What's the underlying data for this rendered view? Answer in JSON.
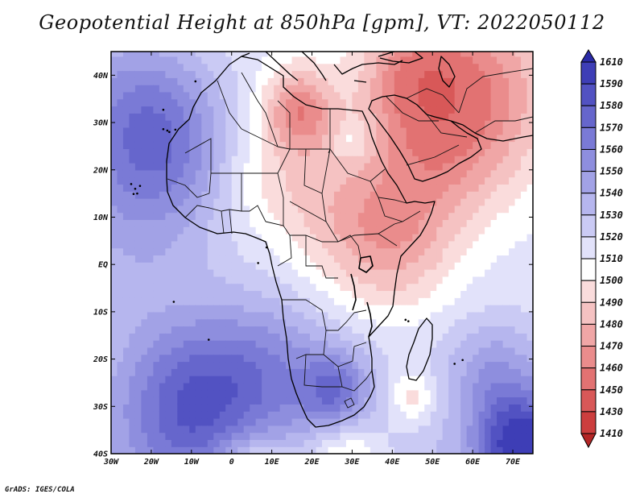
{
  "title": "Geopotential Height at 850hPa [gpm], VT: 2022050112",
  "credit": "GrADS: IGES/COLA",
  "map": {
    "projection": "latlon",
    "lon_range": [
      -30,
      75
    ],
    "lat_range": [
      -40,
      45
    ],
    "lon_ticks": [
      {
        "v": -30,
        "label": "30W"
      },
      {
        "v": -20,
        "label": "20W"
      },
      {
        "v": -10,
        "label": "10W"
      },
      {
        "v": 0,
        "label": "0"
      },
      {
        "v": 10,
        "label": "10E"
      },
      {
        "v": 20,
        "label": "20E"
      },
      {
        "v": 30,
        "label": "30E"
      },
      {
        "v": 40,
        "label": "40E"
      },
      {
        "v": 50,
        "label": "50E"
      },
      {
        "v": 60,
        "label": "60E"
      },
      {
        "v": 70,
        "label": "70E"
      }
    ],
    "lat_ticks": [
      {
        "v": 40,
        "label": "40N"
      },
      {
        "v": 30,
        "label": "30N"
      },
      {
        "v": 20,
        "label": "20N"
      },
      {
        "v": 10,
        "label": "10N"
      },
      {
        "v": 0,
        "label": "EQ"
      },
      {
        "v": -10,
        "label": "10S"
      },
      {
        "v": -20,
        "label": "20S"
      },
      {
        "v": -30,
        "label": "30S"
      },
      {
        "v": -40,
        "label": "40S"
      }
    ]
  },
  "colorbar": {
    "orientation": "vertical",
    "labels": [
      "1610",
      "1590",
      "1580",
      "1570",
      "1560",
      "1550",
      "1540",
      "1530",
      "1520",
      "1510",
      "1500",
      "1490",
      "1480",
      "1470",
      "1460",
      "1450",
      "1430",
      "1410"
    ],
    "colors": [
      "#2a2aa6",
      "#3e3eb6",
      "#5252c2",
      "#6666cc",
      "#7a7ad6",
      "#8e8ede",
      "#a2a2e6",
      "#b6b6ee",
      "#cacaf4",
      "#e2e2fa",
      "#ffffff",
      "#fadcdc",
      "#f5c2c2",
      "#f0a6a6",
      "#ea8c8c",
      "#e27272",
      "#d85858",
      "#cc3e3e",
      "#b42626"
    ]
  },
  "field": {
    "base": 1510,
    "features": [
      {
        "lon": 17,
        "lat": 33,
        "amp": -45,
        "r": 6
      },
      {
        "lon": 60,
        "lat": 36,
        "amp": -48,
        "r": 14
      },
      {
        "lon": 45,
        "lat": 40,
        "amp": -32,
        "r": 9
      },
      {
        "lon": 30,
        "lat": 10,
        "amp": -28,
        "r": 12
      },
      {
        "lon": 42,
        "lat": 3,
        "amp": -22,
        "r": 10
      },
      {
        "lon": 50,
        "lat": 20,
        "amp": -22,
        "r": 11
      },
      {
        "lon": 10,
        "lat": 20,
        "amp": -16,
        "r": 10
      },
      {
        "lon": 45,
        "lat": -28,
        "amp": -26,
        "r": 4
      },
      {
        "lon": 5,
        "lat": -46,
        "amp": -45,
        "r": 7
      },
      {
        "lon": 28,
        "lat": -42,
        "amp": -35,
        "r": 7
      },
      {
        "lon": -25,
        "lat": 32,
        "amp": 38,
        "r": 14
      },
      {
        "lon": -15,
        "lat": 25,
        "amp": 28,
        "r": 12
      },
      {
        "lon": -25,
        "lat": 5,
        "amp": 18,
        "r": 14
      },
      {
        "lon": -10,
        "lat": -30,
        "amp": 55,
        "r": 13
      },
      {
        "lon": 10,
        "lat": -22,
        "amp": 30,
        "r": 12
      },
      {
        "lon": 26,
        "lat": -27,
        "amp": 42,
        "r": 6
      },
      {
        "lon": 72,
        "lat": -38,
        "amp": 75,
        "r": 8
      },
      {
        "lon": 65,
        "lat": -22,
        "amp": 25,
        "r": 8
      },
      {
        "lon": 30,
        "lat": 26,
        "amp": 14,
        "r": 3
      }
    ]
  }
}
